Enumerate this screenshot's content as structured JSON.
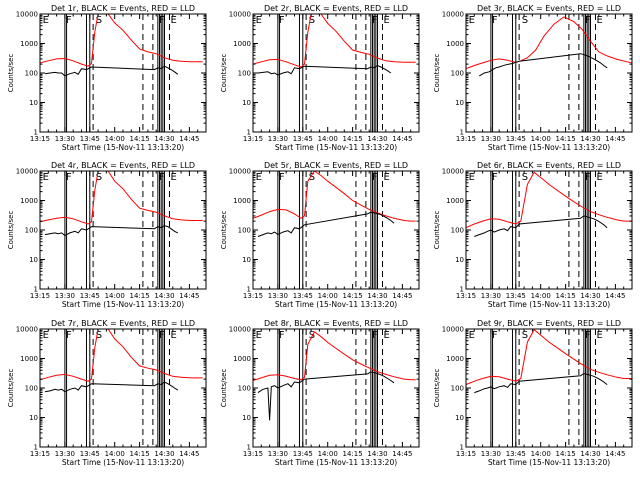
{
  "chart_data": {
    "type": "line",
    "yscale": "log",
    "ylim": [
      1,
      10000
    ],
    "ytick_labels": [
      "1",
      "10",
      "100",
      "1000",
      "10000"
    ],
    "xlim": [
      "13:15",
      "14:55"
    ],
    "xtick_labels": [
      "13:15",
      "13:30",
      "13:45",
      "14:00",
      "14:15",
      "14:30",
      "14:45"
    ],
    "ylabel": "Counts/sec",
    "xlabel": "Start Time (15-Nov-11 13:13:20)",
    "series_legend": "BLACK = Events, RED = LLD",
    "colors": {
      "events": "#000000",
      "lld": "#ff0000"
    },
    "marker_labels": [
      "E",
      "F",
      "S",
      "F",
      "E"
    ],
    "marker_times": [
      "13:16",
      "13:30",
      "13:48",
      "14:26",
      "14:33"
    ],
    "solid_lines": [
      "13:30",
      "13:31",
      "13:43",
      "13:45",
      "14:26",
      "14:27",
      "14:28",
      "14:29",
      "14:30"
    ],
    "dashed_lines": [
      "13:47",
      "14:17",
      "14:23",
      "14:33"
    ],
    "panels": [
      {
        "title": "Det 1r, BLACK = Events, RED = LLD",
        "events": {
          "x": [
            "13:18",
            "13:21",
            "13:24",
            "13:26",
            "13:28",
            "13:30",
            "13:33",
            "13:36",
            "13:38",
            "13:40",
            "13:43",
            "13:46",
            "14:24",
            "14:26",
            "14:28",
            "14:30",
            "14:32",
            "14:34",
            "14:36",
            "14:38"
          ],
          "y": [
            95,
            100,
            105,
            100,
            100,
            80,
            95,
            105,
            90,
            140,
            130,
            160,
            130,
            150,
            140,
            170,
            150,
            130,
            110,
            90
          ]
        },
        "lld": {
          "x": [
            "13:15",
            "13:20",
            "13:25",
            "13:30",
            "13:35",
            "13:40",
            "13:44",
            "13:46",
            "13:48",
            "13:50",
            "13:53",
            "13:56",
            "14:00",
            "14:05",
            "14:10",
            "14:15",
            "14:20",
            "14:25",
            "14:30",
            "14:35",
            "14:40",
            "14:46",
            "14:50",
            "14:53"
          ],
          "y": [
            220,
            260,
            300,
            310,
            260,
            200,
            170,
            210,
            2500,
            10000,
            10000,
            10000,
            5000,
            2800,
            1300,
            650,
            520,
            450,
            330,
            270,
            250,
            240,
            240,
            240
          ]
        }
      },
      {
        "title": "Det 2r, BLACK = Events, RED = LLD",
        "events": {
          "x": [
            "13:18",
            "13:21",
            "13:24",
            "13:26",
            "13:28",
            "13:30",
            "13:33",
            "13:36",
            "13:38",
            "13:40",
            "13:43",
            "13:46",
            "14:24",
            "14:26",
            "14:28",
            "14:30",
            "14:32",
            "14:34",
            "14:36",
            "14:38"
          ],
          "y": [
            100,
            105,
            110,
            95,
            100,
            85,
            100,
            110,
            95,
            150,
            140,
            170,
            140,
            160,
            150,
            180,
            160,
            140,
            120,
            100
          ]
        },
        "lld": {
          "x": [
            "13:15",
            "13:20",
            "13:25",
            "13:30",
            "13:35",
            "13:40",
            "13:44",
            "13:46",
            "13:48",
            "13:50",
            "13:53",
            "13:56",
            "14:00",
            "14:05",
            "14:10",
            "14:15",
            "14:20",
            "14:25",
            "14:30",
            "14:35",
            "14:40",
            "14:46",
            "14:50",
            "14:53"
          ],
          "y": [
            200,
            240,
            280,
            290,
            240,
            190,
            160,
            200,
            2400,
            10000,
            10000,
            10000,
            4800,
            2600,
            1200,
            600,
            500,
            430,
            320,
            260,
            240,
            230,
            230,
            230
          ]
        }
      },
      {
        "title": "Det 3r, BLACK = Events, RED = LLD",
        "events": {
          "x": [
            "13:23",
            "13:26",
            "13:29",
            "13:31",
            "13:33",
            "13:35",
            "13:37",
            "13:39",
            "13:41",
            "13:43",
            "13:45",
            "13:47",
            "14:24",
            "14:26",
            "14:28",
            "14:30",
            "14:32",
            "14:34",
            "14:36",
            "14:38",
            "14:40"
          ],
          "y": [
            80,
            100,
            110,
            130,
            150,
            160,
            175,
            190,
            200,
            210,
            230,
            250,
            450,
            420,
            380,
            340,
            300,
            260,
            220,
            180,
            150
          ]
        },
        "lld": {
          "x": [
            "13:15",
            "13:20",
            "13:25",
            "13:30",
            "13:35",
            "13:40",
            "13:45",
            "13:48",
            "13:52",
            "13:57",
            "14:02",
            "14:08",
            "14:14",
            "14:20",
            "14:25",
            "14:30",
            "14:35",
            "14:40",
            "14:46",
            "14:52",
            "14:55"
          ],
          "y": [
            140,
            180,
            220,
            270,
            300,
            270,
            230,
            260,
            330,
            600,
            1800,
            4500,
            8000,
            5500,
            3000,
            1200,
            520,
            380,
            290,
            240,
            220
          ]
        }
      },
      {
        "title": "Det 4r, BLACK = Events, RED = LLD",
        "events": {
          "x": [
            "13:18",
            "13:21",
            "13:24",
            "13:26",
            "13:28",
            "13:30",
            "13:33",
            "13:36",
            "13:38",
            "13:40",
            "13:43",
            "13:46",
            "14:24",
            "14:26",
            "14:28",
            "14:30",
            "14:32",
            "14:34",
            "14:36",
            "14:38"
          ],
          "y": [
            70,
            75,
            80,
            75,
            80,
            65,
            80,
            90,
            80,
            110,
            100,
            130,
            110,
            130,
            120,
            140,
            130,
            110,
            90,
            80
          ]
        },
        "lld": {
          "x": [
            "13:15",
            "13:20",
            "13:25",
            "13:30",
            "13:35",
            "13:40",
            "13:44",
            "13:46",
            "13:48",
            "13:50",
            "13:53",
            "13:56",
            "14:00",
            "14:05",
            "14:10",
            "14:15",
            "14:20",
            "14:25",
            "14:30",
            "14:35",
            "14:40",
            "14:46",
            "14:50",
            "14:53"
          ],
          "y": [
            190,
            220,
            250,
            270,
            240,
            190,
            160,
            190,
            2200,
            10000,
            10000,
            10000,
            4500,
            2500,
            1100,
            550,
            460,
            400,
            300,
            240,
            220,
            210,
            210,
            210
          ]
        }
      },
      {
        "title": "Det 5r, BLACK = Events, RED = LLD",
        "events": {
          "x": [
            "13:18",
            "13:21",
            "13:24",
            "13:26",
            "13:28",
            "13:30",
            "13:33",
            "13:36",
            "13:38",
            "13:40",
            "13:43",
            "13:46",
            "14:24",
            "14:26",
            "14:28",
            "14:30",
            "14:32",
            "14:34",
            "14:36",
            "14:38",
            "14:40"
          ],
          "y": [
            60,
            70,
            80,
            75,
            85,
            70,
            85,
            95,
            80,
            120,
            110,
            150,
            350,
            400,
            380,
            360,
            330,
            290,
            250,
            210,
            170
          ]
        },
        "lld": {
          "x": [
            "13:15",
            "13:20",
            "13:25",
            "13:30",
            "13:35",
            "13:40",
            "13:44",
            "13:46",
            "13:48",
            "13:52",
            "13:56",
            "14:00",
            "14:05",
            "14:10",
            "14:15",
            "14:20",
            "14:25",
            "14:30",
            "14:35",
            "14:40",
            "14:46",
            "14:50",
            "14:53"
          ],
          "y": [
            250,
            320,
            420,
            500,
            480,
            350,
            250,
            300,
            4500,
            10000,
            7000,
            4500,
            2800,
            1700,
            1000,
            700,
            500,
            380,
            300,
            250,
            210,
            200,
            200
          ]
        }
      },
      {
        "title": "Det 6r, BLACK = Events, RED = LLD",
        "events": {
          "x": [
            "13:20",
            "13:23",
            "13:26",
            "13:28",
            "13:30",
            "13:32",
            "13:35",
            "13:38",
            "13:40",
            "13:42",
            "13:45",
            "13:47",
            "14:24",
            "14:26",
            "14:28",
            "14:30",
            "14:32",
            "14:34",
            "14:36",
            "14:38",
            "14:40"
          ],
          "y": [
            60,
            70,
            80,
            90,
            100,
            85,
            100,
            110,
            95,
            130,
            120,
            160,
            250,
            300,
            280,
            260,
            240,
            210,
            180,
            150,
            120
          ]
        },
        "lld": {
          "x": [
            "13:15",
            "13:20",
            "13:25",
            "13:30",
            "13:35",
            "13:40",
            "13:45",
            "13:48",
            "13:52",
            "13:56",
            "14:00",
            "14:05",
            "14:10",
            "14:15",
            "14:20",
            "14:25",
            "14:30",
            "14:35",
            "14:40",
            "14:46",
            "14:50",
            "14:55"
          ],
          "y": [
            120,
            160,
            200,
            240,
            230,
            190,
            160,
            200,
            3500,
            9000,
            6000,
            3500,
            2200,
            1400,
            900,
            600,
            420,
            330,
            270,
            220,
            200,
            200
          ]
        }
      },
      {
        "title": "Det 7r, BLACK = Events, RED = LLD",
        "events": {
          "x": [
            "13:18",
            "13:21",
            "13:24",
            "13:26",
            "13:28",
            "13:30",
            "13:33",
            "13:36",
            "13:38",
            "13:40",
            "13:43",
            "13:46",
            "14:24",
            "14:26",
            "14:28",
            "14:30",
            "14:32",
            "14:34",
            "14:36",
            "14:38"
          ],
          "y": [
            75,
            80,
            90,
            85,
            90,
            75,
            90,
            100,
            85,
            120,
            110,
            140,
            120,
            140,
            130,
            160,
            140,
            120,
            100,
            85
          ]
        },
        "lld": {
          "x": [
            "13:15",
            "13:20",
            "13:25",
            "13:30",
            "13:35",
            "13:40",
            "13:44",
            "13:46",
            "13:48",
            "13:50",
            "13:53",
            "13:56",
            "14:00",
            "14:05",
            "14:10",
            "14:15",
            "14:20",
            "14:25",
            "14:30",
            "14:35",
            "14:40",
            "14:46",
            "14:50",
            "14:53"
          ],
          "y": [
            190,
            230,
            270,
            290,
            250,
            200,
            170,
            200,
            2300,
            10000,
            10000,
            10000,
            4600,
            2500,
            1100,
            560,
            470,
            410,
            310,
            250,
            230,
            220,
            220,
            220
          ]
        }
      },
      {
        "title": "Det 8r, BLACK = Events, RED = LLD",
        "events": {
          "x": [
            "13:18",
            "13:21",
            "13:24",
            "13:25",
            "13:26",
            "13:28",
            "13:30",
            "13:33",
            "13:36",
            "13:38",
            "13:40",
            "13:43",
            "13:46",
            "14:24",
            "14:26",
            "14:28",
            "14:30",
            "14:32",
            "14:34",
            "14:36",
            "14:38",
            "14:40"
          ],
          "y": [
            70,
            90,
            100,
            8,
            110,
            120,
            100,
            120,
            140,
            110,
            160,
            150,
            200,
            300,
            350,
            330,
            310,
            280,
            250,
            210,
            180,
            150
          ]
        },
        "lld": {
          "x": [
            "13:15",
            "13:20",
            "13:25",
            "13:30",
            "13:35",
            "13:40",
            "13:44",
            "13:46",
            "13:48",
            "13:52",
            "13:56",
            "14:00",
            "14:05",
            "14:10",
            "14:15",
            "14:20",
            "14:25",
            "14:30",
            "14:35",
            "14:40",
            "14:46",
            "14:50",
            "14:53"
          ],
          "y": [
            180,
            220,
            270,
            280,
            250,
            210,
            190,
            230,
            3000,
            8000,
            5500,
            3500,
            2200,
            1400,
            900,
            650,
            480,
            360,
            290,
            240,
            200,
            190,
            190
          ]
        }
      },
      {
        "title": "Det 9r, BLACK = Events, RED = LLD",
        "events": {
          "x": [
            "13:20",
            "13:23",
            "13:26",
            "13:28",
            "13:30",
            "13:32",
            "13:35",
            "13:38",
            "13:40",
            "13:42",
            "13:45",
            "13:47",
            "14:24",
            "14:26",
            "14:28",
            "14:30",
            "14:32",
            "14:34",
            "14:36",
            "14:38",
            "14:40"
          ],
          "y": [
            70,
            80,
            95,
            100,
            110,
            95,
            110,
            120,
            105,
            140,
            130,
            170,
            260,
            310,
            290,
            270,
            250,
            220,
            190,
            160,
            130
          ]
        },
        "lld": {
          "x": [
            "13:15",
            "13:20",
            "13:25",
            "13:30",
            "13:35",
            "13:40",
            "13:45",
            "13:48",
            "13:52",
            "13:56",
            "14:00",
            "14:05",
            "14:10",
            "14:15",
            "14:20",
            "14:25",
            "14:30",
            "14:35",
            "14:40",
            "14:46",
            "14:50",
            "14:55"
          ],
          "y": [
            130,
            170,
            210,
            250,
            240,
            200,
            170,
            210,
            3600,
            9500,
            6200,
            3600,
            2300,
            1450,
            950,
            620,
            430,
            340,
            280,
            230,
            210,
            210
          ]
        }
      }
    ]
  }
}
